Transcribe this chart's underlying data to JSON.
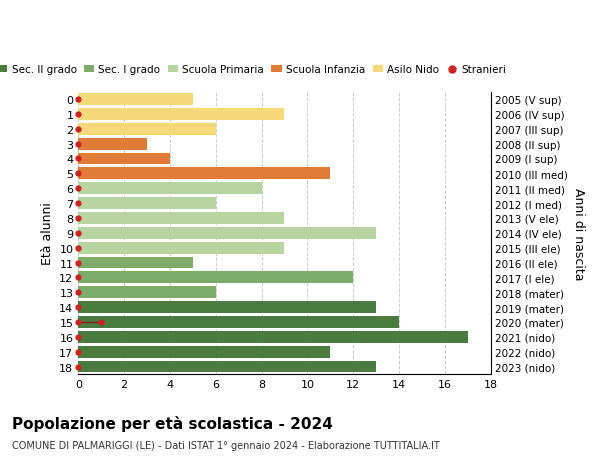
{
  "title": "Popolazione per età scolastica - 2024",
  "subtitle": "COMUNE DI PALMARIGGI (LE) - Dati ISTAT 1° gennaio 2024 - Elaborazione TUTTITALIA.IT",
  "ylabel_left": "Età alunni",
  "ylabel_right": "Anni di nascita",
  "ages": [
    18,
    17,
    16,
    15,
    14,
    13,
    12,
    11,
    10,
    9,
    8,
    7,
    6,
    5,
    4,
    3,
    2,
    1,
    0
  ],
  "labels_right": [
    "2005 (V sup)",
    "2006 (IV sup)",
    "2007 (III sup)",
    "2008 (II sup)",
    "2009 (I sup)",
    "2010 (III med)",
    "2011 (II med)",
    "2012 (I med)",
    "2013 (V ele)",
    "2014 (IV ele)",
    "2015 (III ele)",
    "2016 (II ele)",
    "2017 (I ele)",
    "2018 (mater)",
    "2019 (mater)",
    "2020 (mater)",
    "2021 (nido)",
    "2022 (nido)",
    "2023 (nido)"
  ],
  "values": [
    13,
    11,
    17,
    14,
    13,
    6,
    12,
    5,
    9,
    13,
    9,
    6,
    8,
    11,
    4,
    3,
    6,
    9,
    5
  ],
  "bar_colors": [
    "#4a7c3f",
    "#4a7c3f",
    "#4a7c3f",
    "#4a7c3f",
    "#4a7c3f",
    "#7dab6a",
    "#7dab6a",
    "#7dab6a",
    "#b8d4a0",
    "#b8d4a0",
    "#b8d4a0",
    "#b8d4a0",
    "#b8d4a0",
    "#e07b39",
    "#e07b39",
    "#e07b39",
    "#f5d87a",
    "#f5d87a",
    "#f5d87a"
  ],
  "stranieri_values": [
    0,
    0,
    0,
    1,
    0,
    0,
    0,
    0,
    0,
    0,
    0,
    0,
    0,
    0,
    0,
    0,
    0,
    0,
    0
  ],
  "xlim": [
    0,
    18
  ],
  "background_color": "#ffffff",
  "legend_labels": [
    "Sec. II grado",
    "Sec. I grado",
    "Scuola Primaria",
    "Scuola Infanzia",
    "Asilo Nido",
    "Stranieri"
  ],
  "legend_colors": [
    "#4a7c3f",
    "#7dab6a",
    "#b8d4a0",
    "#e07b39",
    "#f5d87a",
    "#cc2222"
  ],
  "grid_color": "#cccccc",
  "bar_height": 0.8,
  "stranieri_dot_color": "#cc2222",
  "stranieri_line_color": "#8b1a1a"
}
